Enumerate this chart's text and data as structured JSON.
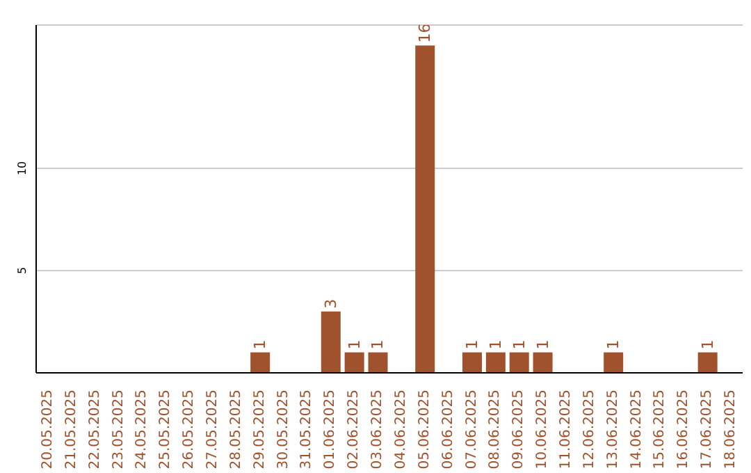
{
  "chart_data": {
    "type": "bar",
    "categories": [
      "20.05.2025",
      "21.05.2025",
      "22.05.2025",
      "23.05.2025",
      "24.05.2025",
      "25.05.2025",
      "26.05.2025",
      "27.05.2025",
      "28.05.2025",
      "29.05.2025",
      "30.05.2025",
      "31.05.2025",
      "01.06.2025",
      "02.06.2025",
      "03.06.2025",
      "04.06.2025",
      "05.06.2025",
      "06.06.2025",
      "07.06.2025",
      "08.06.2025",
      "09.06.2025",
      "10.06.2025",
      "11.06.2025",
      "12.06.2025",
      "13.06.2025",
      "14.06.2025",
      "15.06.2025",
      "16.06.2025",
      "17.06.2025",
      "18.06.2025"
    ],
    "values": [
      0,
      0,
      0,
      0,
      0,
      0,
      0,
      0,
      0,
      1,
      0,
      0,
      3,
      1,
      1,
      0,
      16,
      0,
      1,
      1,
      1,
      1,
      0,
      0,
      1,
      0,
      0,
      0,
      1,
      0
    ],
    "value_labels": [
      null,
      null,
      null,
      null,
      null,
      null,
      null,
      null,
      null,
      "1",
      null,
      null,
      "3",
      "1",
      "1",
      null,
      "16",
      null,
      "1",
      "1",
      "1",
      "1",
      null,
      null,
      "1",
      null,
      null,
      null,
      "1",
      null
    ],
    "color": "#a0522d",
    "ylim": [
      0,
      17
    ],
    "yticks": [
      5,
      10
    ],
    "grid": "y"
  }
}
